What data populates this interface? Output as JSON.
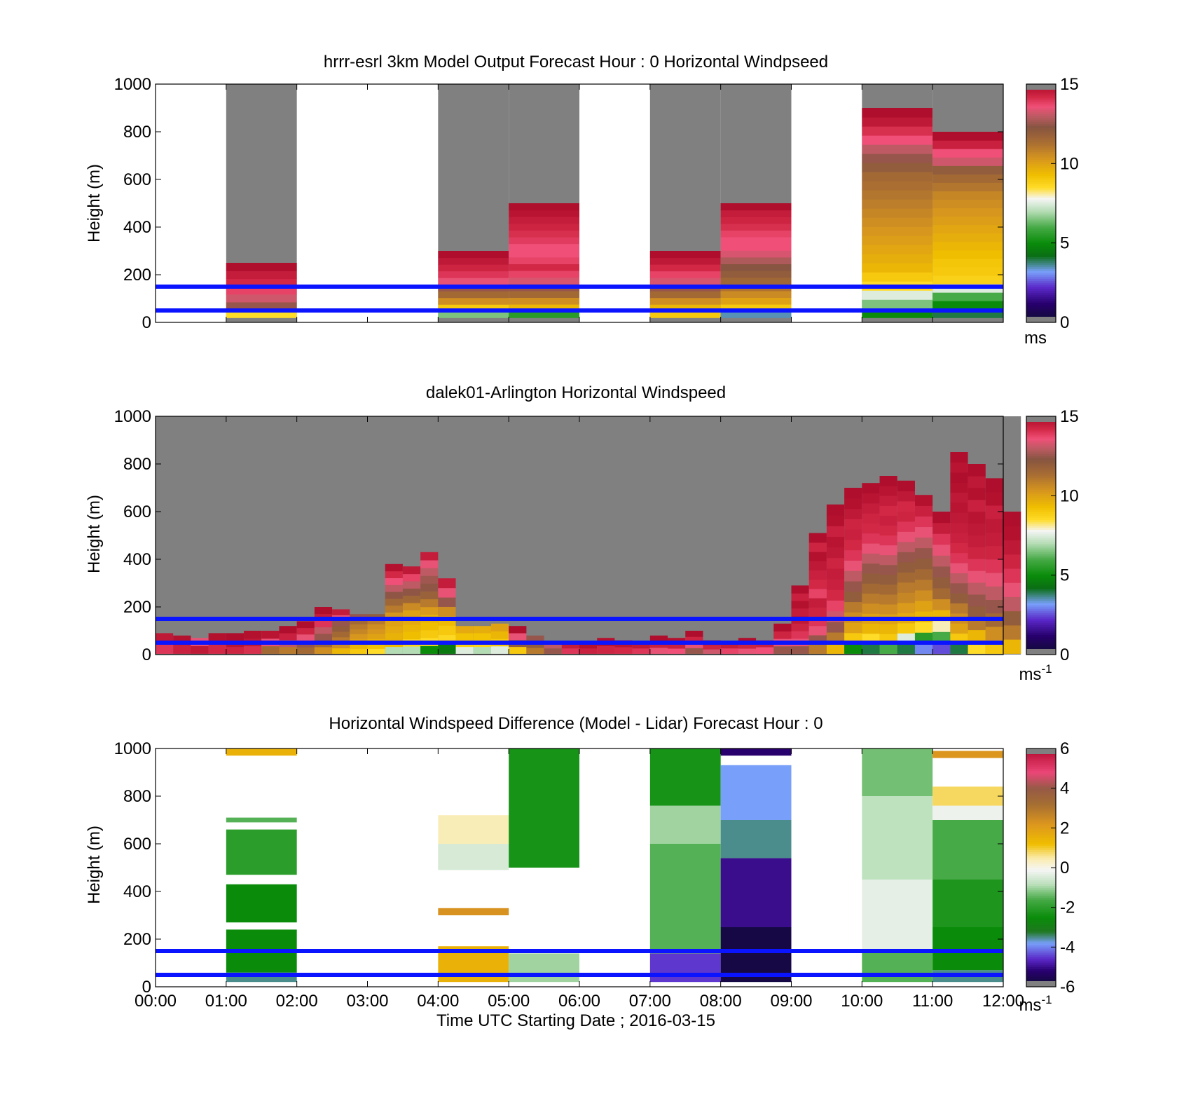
{
  "figure": {
    "xlabel": "Time UTC  Starting Date ; 2016-03-15",
    "line_color": "#0a14ff",
    "reference_heights": [
      50,
      150
    ]
  },
  "chart_data": [
    {
      "type": "heatmap",
      "title": "hrrr-esrl 3km Model Output   Forecast Hour : 0 Horizontal Windpseed",
      "ylabel": "Height (m)",
      "ylim": [
        0,
        1000
      ],
      "yticks": [
        "0",
        "200",
        "400",
        "600",
        "800",
        "1000"
      ],
      "xticks": [],
      "colorbar": {
        "range": [
          0,
          15
        ],
        "ticks": [
          "0",
          "5",
          "10",
          "15"
        ],
        "unit": "ms",
        "unit_sup": ""
      },
      "missing_color": "#808080",
      "columns": [
        {
          "t0": 0,
          "t1": 1,
          "empty": true
        },
        {
          "t0": 1,
          "t1": 2,
          "top": 250,
          "values": [
            8.5,
            12.5,
            13.2,
            13.8,
            14.2,
            14.5,
            14.9
          ]
        },
        {
          "t0": 2,
          "t1": 3,
          "empty": true
        },
        {
          "t0": 3,
          "t1": 4,
          "empty": true
        },
        {
          "t0": 4,
          "t1": 5,
          "top": 300,
          "values": [
            6.5,
            9,
            10.5,
            11.5,
            12.5,
            13.5,
            14,
            14.3,
            14.6,
            14.9
          ]
        },
        {
          "t0": 5,
          "t1": 6,
          "top": 500,
          "values": [
            5.5,
            9.5,
            10.5,
            11.5,
            12.5,
            13.3,
            13.8,
            14.2,
            13.8,
            13.6,
            13.6,
            13.9,
            14.1,
            14.3,
            14.5,
            14.7,
            14.9
          ]
        },
        {
          "t0": 6,
          "t1": 7,
          "empty": true
        },
        {
          "t0": 7,
          "t1": 8,
          "top": 300,
          "values": [
            9,
            9.5,
            10.5,
            11.5,
            12.5,
            13.3,
            13.8,
            14.2,
            14.6,
            14.9
          ]
        },
        {
          "t0": 8,
          "t1": 9,
          "top": 500,
          "values": [
            3.5,
            9,
            10,
            10.6,
            11.2,
            11.6,
            12,
            12.3,
            12.8,
            13.3,
            13.6,
            13.6,
            13.8,
            14.1,
            14.3,
            14.5,
            14.9
          ]
        },
        {
          "t0": 9,
          "t1": 10,
          "empty": true
        },
        {
          "t0": 10,
          "t1": 11,
          "top": 900,
          "values": [
            5,
            6.5,
            7.5,
            8.5,
            9,
            9.5,
            9.7,
            9.9,
            10.1,
            10.3,
            10.5,
            10.7,
            10.9,
            11.1,
            11.3,
            11.5,
            12,
            12.5,
            13,
            13.6,
            14.1,
            14.6,
            14.9
          ]
        },
        {
          "t0": 11,
          "t1": 12,
          "top": 800,
          "values": [
            4,
            5,
            6,
            7.5,
            8.8,
            9,
            9.1,
            9.3,
            9.5,
            9.7,
            9.9,
            10.1,
            10.3,
            10.5,
            10.7,
            11.1,
            11.5,
            12,
            13.2,
            13.6,
            14.4,
            14.9
          ]
        }
      ]
    },
    {
      "type": "heatmap",
      "title": "dalek01-Arlington  Horizontal Windspeed",
      "ylabel": "Height (m)",
      "ylim": [
        0,
        1000
      ],
      "yticks": [
        "0",
        "200",
        "400",
        "600",
        "800",
        "1000"
      ],
      "xticks": [],
      "colorbar": {
        "range": [
          0,
          15
        ],
        "ticks": [
          "0",
          "5",
          "10",
          "15"
        ],
        "unit": "ms",
        "unit_sup": "-1"
      },
      "missing_color": "#808080",
      "profiles": [
        {
          "t": 0.125,
          "top": 90,
          "values": [
            14,
            14.6
          ]
        },
        {
          "t": 0.375,
          "top": 80,
          "values": [
            14.4,
            14.8
          ]
        },
        {
          "t": 0.625,
          "top": 70,
          "values": [
            14.6,
            13.5
          ]
        },
        {
          "t": 0.875,
          "top": 90,
          "values": [
            14.2,
            14.8
          ]
        },
        {
          "t": 1.125,
          "top": 90,
          "values": [
            14.3,
            14.7,
            14.9
          ]
        },
        {
          "t": 1.375,
          "top": 100,
          "values": [
            14.1,
            14.6,
            14.8
          ]
        },
        {
          "t": 1.625,
          "top": 100,
          "values": [
            11.5,
            13.5,
            14.7
          ]
        },
        {
          "t": 1.875,
          "top": 120,
          "values": [
            11,
            13,
            14.4,
            14.9
          ]
        },
        {
          "t": 2.125,
          "top": 140,
          "values": [
            11.5,
            12.5,
            13.5,
            14.3,
            14.9
          ]
        },
        {
          "t": 2.375,
          "top": 200,
          "values": [
            10.5,
            11.5,
            12.5,
            13,
            14,
            14.5,
            14.9
          ]
        },
        {
          "t": 2.625,
          "top": 190,
          "values": [
            9.5,
            10.5,
            11,
            11.5,
            12,
            12.5,
            13.5,
            14.5
          ]
        },
        {
          "t": 2.875,
          "top": 170,
          "values": [
            9,
            9.5,
            10,
            10.3,
            10.7,
            11,
            11.5,
            12.5
          ]
        },
        {
          "t": 3.125,
          "top": 170,
          "values": [
            8.5,
            9.2,
            9.6,
            10,
            10.3,
            10.5,
            11,
            12
          ]
        },
        {
          "t": 3.375,
          "top": 380,
          "values": [
            7,
            9.3,
            9.6,
            9.8,
            10,
            10.3,
            11,
            11.6,
            12.4,
            13,
            13.6,
            14.2,
            14.8
          ]
        },
        {
          "t": 3.625,
          "top": 370,
          "values": [
            7,
            8.7,
            9.3,
            9.5,
            9.8,
            10,
            10.6,
            11.6,
            12.4,
            13,
            13.8,
            14.6
          ]
        },
        {
          "t": 3.875,
          "top": 430,
          "values": [
            5,
            8.5,
            9,
            9.3,
            9.6,
            10.2,
            11,
            11.8,
            12.4,
            12.6,
            13,
            13.5,
            14.5
          ]
        },
        {
          "t": 4.125,
          "top": 320,
          "values": [
            4.5,
            8.6,
            9,
            9.4,
            10.5,
            12.5,
            13.5,
            14.5
          ]
        },
        {
          "t": 4.375,
          "top": 120,
          "values": [
            7.5,
            8.8,
            9.2,
            9.8
          ]
        },
        {
          "t": 4.625,
          "top": 120,
          "values": [
            7,
            8.7,
            9.2,
            9.7
          ]
        },
        {
          "t": 4.875,
          "top": 130,
          "values": [
            7.5,
            9,
            9.5,
            10
          ]
        },
        {
          "t": 5.125,
          "top": 120,
          "values": [
            9,
            12,
            13.5,
            14.9
          ]
        },
        {
          "t": 5.375,
          "top": 80,
          "values": [
            11,
            12,
            12.5
          ]
        },
        {
          "t": 5.625,
          "top": 50,
          "values": [
            12.5,
            13
          ]
        },
        {
          "t": 5.875,
          "top": 50,
          "values": [
            14,
            14.5
          ]
        },
        {
          "t": 6.125,
          "top": 50,
          "values": [
            14.4,
            14.8
          ]
        },
        {
          "t": 6.375,
          "top": 70,
          "values": [
            14.3,
            14.8
          ]
        },
        {
          "t": 6.625,
          "top": 60,
          "values": [
            14.2,
            14.7
          ]
        },
        {
          "t": 6.875,
          "top": 50,
          "values": [
            14,
            14.6
          ]
        },
        {
          "t": 7.125,
          "top": 80,
          "values": [
            13.5,
            14.4,
            14.9
          ]
        },
        {
          "t": 7.375,
          "top": 70,
          "values": [
            13.6,
            14.4,
            14.8
          ]
        },
        {
          "t": 7.625,
          "top": 100,
          "values": [
            12.5,
            13.5,
            14.3,
            14.9
          ]
        },
        {
          "t": 7.875,
          "top": 60,
          "values": [
            13.2,
            14.3,
            14.8
          ]
        },
        {
          "t": 8.125,
          "top": 50,
          "values": [
            13.8,
            14.5
          ]
        },
        {
          "t": 8.375,
          "top": 70,
          "values": [
            13.5,
            14.3,
            14.9
          ]
        },
        {
          "t": 8.625,
          "top": 60,
          "values": [
            13.6,
            14.4
          ]
        },
        {
          "t": 8.875,
          "top": 130,
          "values": [
            12.5,
            13.5,
            14.3,
            14.9
          ]
        },
        {
          "t": 9.125,
          "top": 290,
          "values": [
            12.5,
            13.5,
            14,
            14.3,
            14.6,
            14.5,
            14.8,
            14.4,
            14.9
          ]
        },
        {
          "t": 9.375,
          "top": 510,
          "values": [
            11,
            12.5,
            13.5,
            14,
            14.3,
            14.5,
            13.8,
            14.2,
            14.4,
            14.6,
            14.8,
            14.3,
            14.9
          ]
        },
        {
          "t": 9.625,
          "top": 630,
          "values": [
            9.5,
            11,
            12.5,
            13.2,
            13.8,
            14.2,
            14.4,
            14.5,
            14.3,
            14.6,
            14.7,
            14.4,
            14.8,
            14.9
          ]
        },
        {
          "t": 9.875,
          "top": 700,
          "values": [
            5,
            9,
            10,
            10.5,
            11,
            12,
            12.5,
            13,
            13.5,
            14,
            14.2,
            14.4,
            14.3,
            14.6,
            14.8,
            14.9
          ]
        },
        {
          "t": 10.125,
          "top": 720,
          "values": [
            4,
            8.5,
            9.5,
            10,
            10.5,
            11,
            11.5,
            12,
            12.5,
            13,
            13.5,
            14,
            14.2,
            14.3,
            14.5,
            14.7,
            14.9
          ]
        },
        {
          "t": 10.375,
          "top": 750,
          "values": [
            6,
            9,
            9.5,
            10,
            10.5,
            11,
            11.5,
            12,
            12.5,
            13,
            13.5,
            14,
            14.2,
            14.4,
            14.2,
            14.5,
            14.7,
            14.9
          ]
        },
        {
          "t": 10.625,
          "top": 730,
          "values": [
            4,
            7.5,
            9,
            9.8,
            10.2,
            10.7,
            11,
            11.5,
            12,
            12.5,
            13,
            13.5,
            14,
            14.3,
            14.2,
            14.6,
            14.9
          ]
        },
        {
          "t": 10.875,
          "top": 670,
          "values": [
            3,
            5.5,
            8.5,
            9.5,
            10,
            10.5,
            11,
            11.5,
            12,
            12.5,
            13,
            13.5,
            14,
            14.4,
            14.8
          ]
        },
        {
          "t": 11.125,
          "top": 600,
          "values": [
            2.5,
            6,
            8,
            9.5,
            10.5,
            11.5,
            12,
            12.5,
            13,
            13.5,
            14,
            14.5,
            14.9
          ]
        },
        {
          "t": 11.375,
          "top": 850,
          "values": [
            4,
            9,
            10,
            10.5,
            11,
            12,
            12.5,
            13,
            13.5,
            14,
            14.2,
            14.4,
            14.5,
            14.6,
            14.7,
            14.6,
            14.8,
            14.9,
            14.7,
            14.9
          ]
        },
        {
          "t": 11.625,
          "top": 800,
          "values": [
            8.5,
            9.5,
            11,
            12,
            12.5,
            13,
            13.5,
            14,
            14.3,
            14.5,
            14.6,
            14.7,
            14.4,
            14.8,
            14.6,
            14.9
          ]
        },
        {
          "t": 11.875,
          "top": 740,
          "values": [
            9,
            10.5,
            11.5,
            12.5,
            13,
            13.5,
            14,
            14.3,
            14.5,
            14.6,
            14.4,
            14.8,
            14.9
          ]
        },
        {
          "t": 12.125,
          "top": 600,
          "values": [
            9.5,
            11,
            12,
            13,
            13.5,
            14,
            14.3,
            14.6,
            14.8,
            14.9
          ]
        }
      ]
    },
    {
      "type": "heatmap",
      "title": "Horizontal Windspeed Difference (Model - Lidar) Forecast Hour : 0",
      "ylabel": "Height (m)",
      "ylim": [
        0,
        1000
      ],
      "yticks": [
        "0",
        "200",
        "400",
        "600",
        "800",
        "1000"
      ],
      "xticks": [
        "00:00",
        "01:00",
        "02:00",
        "03:00",
        "04:00",
        "05:00",
        "06:00",
        "07:00",
        "08:00",
        "09:00",
        "10:00",
        "11:00",
        "12:00"
      ],
      "colorbar": {
        "range": [
          -6,
          6
        ],
        "ticks": [
          "-6",
          "-4",
          "-2",
          "0",
          "2",
          "4",
          "6"
        ],
        "unit": "ms",
        "unit_sup": "-1"
      },
      "missing_color": "#808080",
      "segments": [
        {
          "t0": 1,
          "t1": 2,
          "bands": [
            [
              20,
              60,
              -3.5
            ],
            [
              60,
              240,
              -2.5
            ],
            [
              270,
              430,
              -2.5
            ],
            [
              470,
              660,
              -2.0
            ],
            [
              690,
              710,
              -1.5
            ],
            [
              970,
              1000,
              1.5
            ]
          ]
        },
        {
          "t0": 4,
          "t1": 5,
          "bands": [
            [
              20,
              170,
              1.5
            ],
            [
              300,
              330,
              2.3
            ],
            [
              490,
              600,
              -0.5
            ],
            [
              600,
              720,
              0.4
            ]
          ]
        },
        {
          "t0": 5,
          "t1": 6,
          "bands": [
            [
              20,
              140,
              -1.0
            ],
            [
              500,
              1000,
              -2.3
            ]
          ]
        },
        {
          "t0": 7,
          "t1": 8,
          "bands": [
            [
              20,
              140,
              -4.5
            ],
            [
              140,
              600,
              -1.5
            ],
            [
              600,
              760,
              -1.0
            ],
            [
              760,
              1000,
              -2.3
            ]
          ]
        },
        {
          "t0": 8,
          "t1": 9,
          "bands": [
            [
              20,
              250,
              -5.7
            ],
            [
              250,
              540,
              -5.0
            ],
            [
              540,
              700,
              -3.5
            ],
            [
              700,
              930,
              -3.8
            ],
            [
              970,
              1000,
              -5.2
            ]
          ]
        },
        {
          "t0": 10,
          "t1": 11,
          "bands": [
            [
              20,
              150,
              -1.5
            ],
            [
              150,
              450,
              -0.3
            ],
            [
              450,
              800,
              -0.8
            ],
            [
              800,
              1000,
              -1.3
            ]
          ]
        },
        {
          "t0": 11,
          "t1": 12,
          "bands": [
            [
              20,
              70,
              -3.5
            ],
            [
              70,
              250,
              -2.5
            ],
            [
              250,
              450,
              -2.2
            ],
            [
              450,
              700,
              -1.6
            ],
            [
              700,
              760,
              -0.2
            ],
            [
              760,
              840,
              0.8
            ],
            [
              960,
              990,
              2.2
            ]
          ]
        }
      ]
    }
  ]
}
